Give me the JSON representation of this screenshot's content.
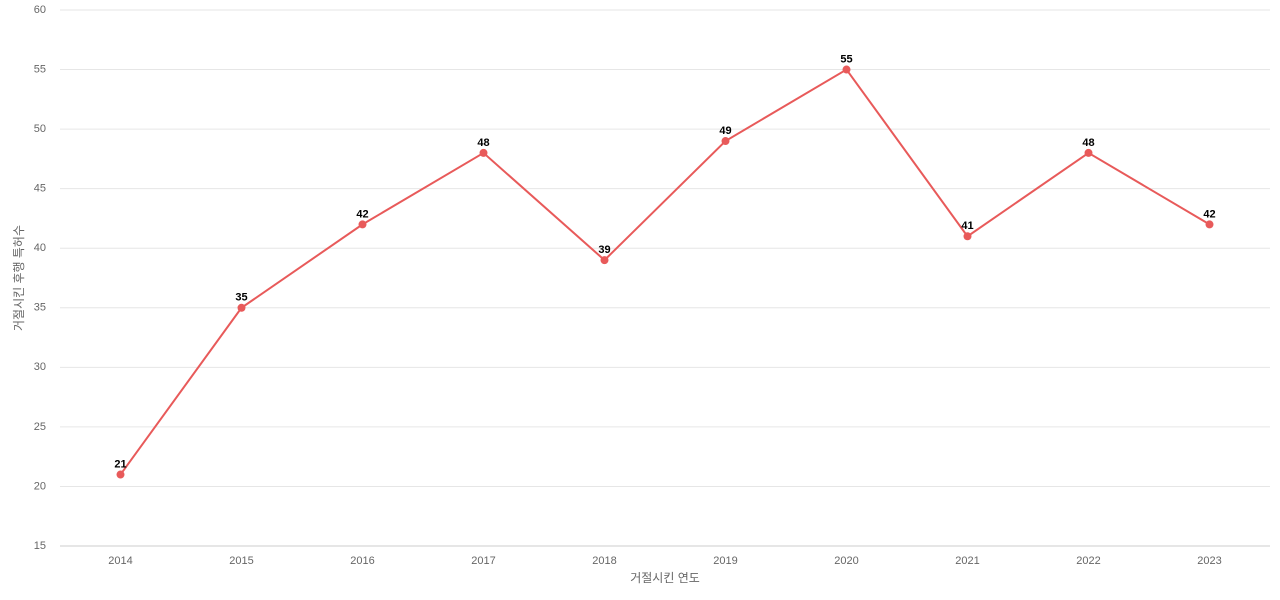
{
  "chart_data": {
    "type": "line",
    "x_label": "거절시킨 연도",
    "y_label": "거절시킨 후행 특허수",
    "categories": [
      "2014",
      "2015",
      "2016",
      "2017",
      "2018",
      "2019",
      "2020",
      "2021",
      "2022",
      "2023"
    ],
    "values": [
      21,
      35,
      42,
      48,
      39,
      49,
      55,
      41,
      48,
      42
    ],
    "color": "#e85a5a",
    "ylim": [
      15,
      60
    ],
    "yticks": [
      15,
      20,
      25,
      30,
      35,
      40,
      45,
      50,
      55,
      60
    ],
    "grid": true
  }
}
